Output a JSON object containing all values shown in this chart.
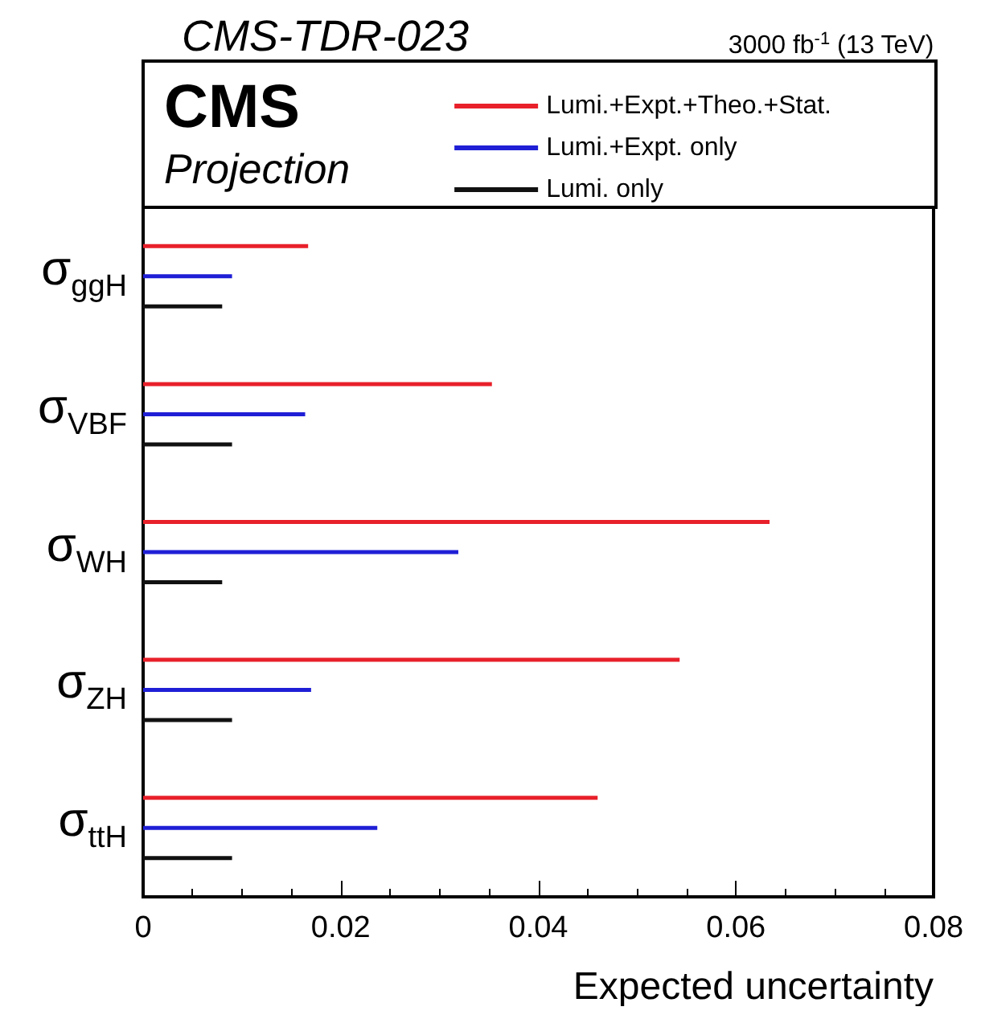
{
  "chart_data": {
    "type": "bar",
    "orientation": "horizontal",
    "title": "CMS-TDR-023",
    "subtitle": "3000 fb$^{-1}$ (13 TeV)",
    "xlabel": "Expected uncertainty",
    "annotations": [
      "CMS",
      "Projection"
    ],
    "categories": [
      "σ$_{ggH}$",
      "σ$_{VBF}$",
      "σ$_{WH}$",
      "σ$_{ZH}$",
      "σ$_{ttH}$"
    ],
    "series": [
      {
        "name": "Lumi.+Expt.+Theo.+Stat.",
        "color": "#e8202a",
        "values": [
          0.0167,
          0.0353,
          0.0634,
          0.0543,
          0.046
        ]
      },
      {
        "name": "Lumi.+Expt. only",
        "color": "#1f1fd6",
        "values": [
          0.009,
          0.0164,
          0.0319,
          0.017,
          0.0237
        ]
      },
      {
        "name": "Lumi. only",
        "color": "#111111",
        "values": [
          0.008,
          0.009,
          0.008,
          0.009,
          0.009
        ]
      }
    ],
    "xlim": [
      0,
      0.08
    ],
    "xticks": [
      0,
      0.02,
      0.04,
      0.06,
      0.08
    ],
    "legend": "top right",
    "grid": false
  }
}
